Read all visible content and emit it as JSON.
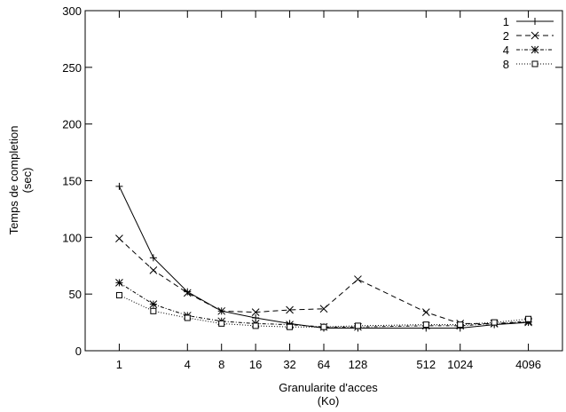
{
  "chart_data": {
    "type": "line",
    "title": "",
    "xlabel": [
      "Granularite d'acces",
      "(Ko)"
    ],
    "ylabel": [
      "Temps de completion",
      "(sec)"
    ],
    "xscale": "log2",
    "xlim": [
      0.5,
      8192
    ],
    "ylim": [
      0,
      300
    ],
    "xticks": [
      1,
      4,
      8,
      16,
      32,
      64,
      128,
      512,
      1024,
      4096
    ],
    "xtick_labels": [
      "1",
      "4",
      "8",
      "16",
      "32",
      "64",
      "128",
      "512",
      "1024",
      "4096"
    ],
    "yticks": [
      0,
      50,
      100,
      150,
      200,
      250,
      300
    ],
    "ytick_labels": [
      "0",
      "50",
      "100",
      "150",
      "200",
      "250",
      "300"
    ],
    "grid": false,
    "legend_position": "top-right",
    "x": [
      1,
      2,
      4,
      8,
      16,
      32,
      64,
      128,
      512,
      1024,
      2048,
      4096
    ],
    "series": [
      {
        "name": "1",
        "marker": "plus",
        "dash": "solid",
        "values": [
          145,
          82,
          52,
          35,
          29,
          24,
          20,
          20,
          20,
          20,
          23,
          25
        ]
      },
      {
        "name": "2",
        "marker": "cross",
        "dash": "dashed",
        "values": [
          99,
          71,
          51,
          35,
          34,
          36,
          37,
          63,
          34,
          24,
          24,
          25
        ]
      },
      {
        "name": "4",
        "marker": "star",
        "dash": "dashdot",
        "values": [
          60,
          41,
          31,
          26,
          24,
          23,
          21,
          21,
          22,
          22,
          24,
          26
        ]
      },
      {
        "name": "8",
        "marker": "square",
        "dash": "dotted",
        "values": [
          49,
          35,
          29,
          24,
          22,
          21,
          21,
          22,
          23,
          23,
          25,
          28
        ]
      }
    ]
  }
}
